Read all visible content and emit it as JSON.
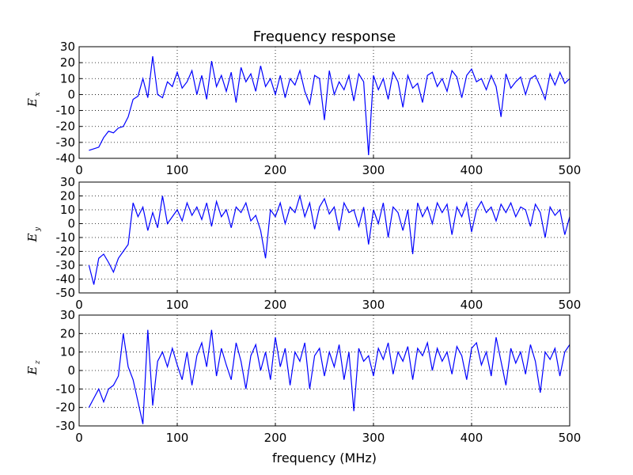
{
  "chart_data": [
    {
      "type": "line",
      "title": "Frequency response",
      "ylabel": "E",
      "ylabel_subscript": "x",
      "grid": true,
      "xlim": [
        0,
        500
      ],
      "xticks": [
        0,
        100,
        200,
        300,
        400,
        500
      ],
      "ylim": [
        -40,
        30
      ],
      "yticks": [
        -40,
        -30,
        -20,
        -10,
        0,
        10,
        20,
        30
      ],
      "x": [
        10,
        15,
        20,
        25,
        30,
        35,
        40,
        45,
        50,
        55,
        60,
        65,
        70,
        75,
        80,
        85,
        90,
        95,
        100,
        105,
        110,
        115,
        120,
        125,
        130,
        135,
        140,
        145,
        150,
        155,
        160,
        165,
        170,
        175,
        180,
        185,
        190,
        195,
        200,
        205,
        210,
        215,
        220,
        225,
        230,
        235,
        240,
        245,
        250,
        255,
        260,
        265,
        270,
        275,
        280,
        285,
        290,
        295,
        300,
        305,
        310,
        315,
        320,
        325,
        330,
        335,
        340,
        345,
        350,
        355,
        360,
        365,
        370,
        375,
        380,
        385,
        390,
        395,
        400,
        405,
        410,
        415,
        420,
        425,
        430,
        435,
        440,
        445,
        450,
        455,
        460,
        465,
        470,
        475,
        480,
        485,
        490,
        495,
        500
      ],
      "series": [
        {
          "color": "#0000ff",
          "values": [
            -35,
            -34,
            -33,
            -27,
            -23,
            -24,
            -21,
            -20,
            -14,
            -3,
            -1,
            10,
            -2,
            24,
            0,
            -2,
            8,
            5,
            14,
            4,
            8,
            15,
            0,
            12,
            -3,
            21,
            5,
            12,
            2,
            14,
            -5,
            17,
            8,
            13,
            2,
            18,
            5,
            10,
            0,
            12,
            -2,
            10,
            6,
            15,
            2,
            -6,
            12,
            10,
            -16,
            15,
            0,
            8,
            3,
            12,
            -4,
            13,
            8,
            -38,
            12,
            3,
            10,
            -3,
            14,
            8,
            -8,
            12,
            4,
            7,
            -5,
            12,
            14,
            5,
            10,
            2,
            15,
            11,
            -2,
            12,
            16,
            8,
            10,
            3,
            12,
            5,
            -14,
            13,
            4,
            8,
            11,
            0,
            10,
            12,
            5,
            -3,
            13,
            6,
            14,
            7,
            10
          ]
        }
      ]
    },
    {
      "type": "line",
      "ylabel": "E",
      "ylabel_subscript": "y",
      "grid": true,
      "xlim": [
        0,
        500
      ],
      "xticks": [
        0,
        100,
        200,
        300,
        400,
        500
      ],
      "ylim": [
        -50,
        30
      ],
      "yticks": [
        -50,
        -40,
        -30,
        -20,
        -10,
        0,
        10,
        20,
        30
      ],
      "x": [
        10,
        15,
        20,
        25,
        30,
        35,
        40,
        45,
        50,
        55,
        60,
        65,
        70,
        75,
        80,
        85,
        90,
        95,
        100,
        105,
        110,
        115,
        120,
        125,
        130,
        135,
        140,
        145,
        150,
        155,
        160,
        165,
        170,
        175,
        180,
        185,
        190,
        195,
        200,
        205,
        210,
        215,
        220,
        225,
        230,
        235,
        240,
        245,
        250,
        255,
        260,
        265,
        270,
        275,
        280,
        285,
        290,
        295,
        300,
        305,
        310,
        315,
        320,
        325,
        330,
        335,
        340,
        345,
        350,
        355,
        360,
        365,
        370,
        375,
        380,
        385,
        390,
        395,
        400,
        405,
        410,
        415,
        420,
        425,
        430,
        435,
        440,
        445,
        450,
        455,
        460,
        465,
        470,
        475,
        480,
        485,
        490,
        495,
        500
      ],
      "series": [
        {
          "color": "#0000ff",
          "values": [
            -30,
            -44,
            -25,
            -22,
            -28,
            -35,
            -25,
            -20,
            -15,
            15,
            5,
            12,
            -5,
            8,
            -3,
            20,
            0,
            5,
            10,
            2,
            15,
            6,
            12,
            3,
            15,
            -2,
            16,
            5,
            10,
            -3,
            12,
            8,
            15,
            2,
            6,
            -5,
            -25,
            10,
            5,
            15,
            0,
            12,
            8,
            20,
            5,
            15,
            -4,
            12,
            18,
            7,
            12,
            -5,
            15,
            8,
            10,
            -2,
            12,
            -15,
            10,
            0,
            15,
            -10,
            12,
            8,
            -5,
            10,
            -22,
            15,
            5,
            12,
            0,
            15,
            8,
            14,
            -8,
            12,
            5,
            15,
            -6,
            10,
            16,
            8,
            12,
            2,
            14,
            8,
            15,
            5,
            12,
            10,
            -2,
            14,
            8,
            -10,
            12,
            6,
            10,
            -8,
            5
          ]
        }
      ]
    },
    {
      "type": "line",
      "xlabel": "frequency (MHz)",
      "ylabel": "E",
      "ylabel_subscript": "z",
      "grid": true,
      "xlim": [
        0,
        500
      ],
      "xticks": [
        0,
        100,
        200,
        300,
        400,
        500
      ],
      "ylim": [
        -30,
        30
      ],
      "yticks": [
        -30,
        -20,
        -10,
        0,
        10,
        20,
        30
      ],
      "x": [
        10,
        15,
        20,
        25,
        30,
        35,
        40,
        45,
        50,
        55,
        60,
        65,
        70,
        75,
        80,
        85,
        90,
        95,
        100,
        105,
        110,
        115,
        120,
        125,
        130,
        135,
        140,
        145,
        150,
        155,
        160,
        165,
        170,
        175,
        180,
        185,
        190,
        195,
        200,
        205,
        210,
        215,
        220,
        225,
        230,
        235,
        240,
        245,
        250,
        255,
        260,
        265,
        270,
        275,
        280,
        285,
        290,
        295,
        300,
        305,
        310,
        315,
        320,
        325,
        330,
        335,
        340,
        345,
        350,
        355,
        360,
        365,
        370,
        375,
        380,
        385,
        390,
        395,
        400,
        405,
        410,
        415,
        420,
        425,
        430,
        435,
        440,
        445,
        450,
        455,
        460,
        465,
        470,
        475,
        480,
        485,
        490,
        495,
        500
      ],
      "series": [
        {
          "color": "#0000ff",
          "values": [
            -20,
            -15,
            -10,
            -17,
            -10,
            -8,
            -3,
            20,
            2,
            -5,
            -17,
            -29,
            22,
            -19,
            5,
            10,
            2,
            12,
            3,
            -5,
            10,
            -8,
            8,
            15,
            2,
            22,
            -3,
            12,
            3,
            -5,
            15,
            5,
            -10,
            8,
            14,
            0,
            10,
            -5,
            18,
            2,
            12,
            -8,
            10,
            5,
            15,
            -10,
            8,
            12,
            -3,
            10,
            2,
            14,
            -5,
            10,
            -22,
            12,
            5,
            8,
            -3,
            12,
            6,
            15,
            -2,
            10,
            5,
            13,
            -5,
            12,
            8,
            15,
            0,
            12,
            5,
            10,
            -2,
            13,
            8,
            -5,
            12,
            15,
            3,
            10,
            -3,
            18,
            5,
            -8,
            12,
            4,
            10,
            -2,
            14,
            5,
            -12,
            10,
            6,
            12,
            -3,
            10,
            14
          ]
        }
      ]
    }
  ]
}
